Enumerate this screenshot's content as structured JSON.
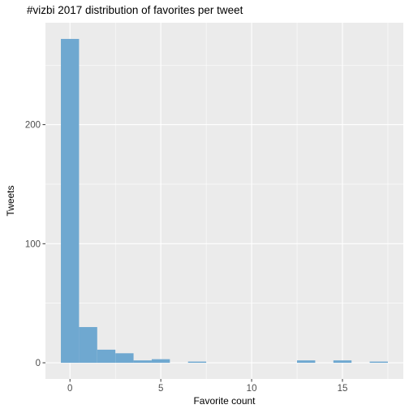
{
  "chart_data": {
    "type": "bar",
    "title": "#vizbi 2017 distribution of favorites per tweet",
    "xlabel": "Favorite count",
    "ylabel": "Tweets",
    "bin_width": 1,
    "bins": [
      {
        "x": 0,
        "count": 272
      },
      {
        "x": 1,
        "count": 30
      },
      {
        "x": 2,
        "count": 11
      },
      {
        "x": 3,
        "count": 8
      },
      {
        "x": 4,
        "count": 2
      },
      {
        "x": 5,
        "count": 3
      },
      {
        "x": 6,
        "count": 0
      },
      {
        "x": 7,
        "count": 1
      },
      {
        "x": 8,
        "count": 0
      },
      {
        "x": 9,
        "count": 0
      },
      {
        "x": 10,
        "count": 0
      },
      {
        "x": 11,
        "count": 0
      },
      {
        "x": 12,
        "count": 0
      },
      {
        "x": 13,
        "count": 2
      },
      {
        "x": 14,
        "count": 0
      },
      {
        "x": 15,
        "count": 2
      },
      {
        "x": 16,
        "count": 0
      },
      {
        "x": 17,
        "count": 1
      }
    ],
    "xlim": [
      -1.35,
      18.35
    ],
    "ylim": [
      -13.6,
      285.6
    ],
    "x_ticks": [
      0,
      5,
      10,
      15
    ],
    "y_ticks": [
      0,
      100,
      200
    ],
    "grid": true,
    "bar_color": "#6fa8d0",
    "panel_color": "#ebebeb",
    "grid_color": "#ffffff"
  }
}
